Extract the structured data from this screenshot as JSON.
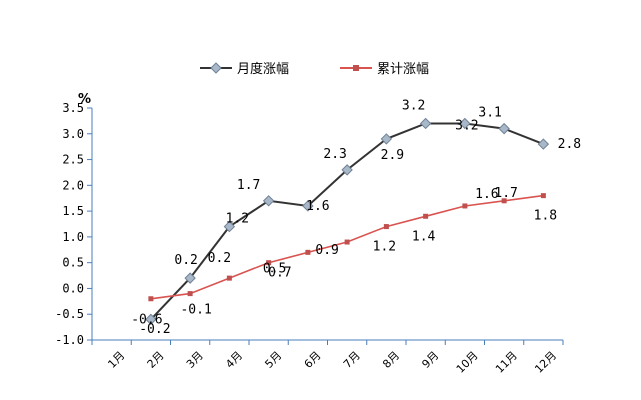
{
  "chart_data": {
    "type": "line",
    "categories": [
      "1月",
      "2月",
      "3月",
      "4月",
      "5月",
      "6月",
      "7月",
      "8月",
      "9月",
      "10月",
      "11月",
      "12月"
    ],
    "ylabel": "%",
    "ylim": [
      -1.0,
      3.5
    ],
    "yticks": [
      "3.5",
      "3.0",
      "2.5",
      "2.0",
      "1.5",
      "1.0",
      "0.5",
      "0.0",
      "-0.5",
      "-1.0"
    ],
    "grid": false,
    "legend": "top-center",
    "series": [
      {
        "name": "月度涨幅",
        "color": "#333333",
        "marker": "diamond",
        "marker_color": "#a9b8c8",
        "values": [
          null,
          -0.6,
          0.2,
          1.2,
          1.7,
          1.6,
          2.3,
          2.9,
          3.2,
          3.2,
          3.1,
          2.8
        ],
        "labels": [
          "",
          "-0.6",
          "0.2",
          "1.2",
          "1.7",
          "1.6",
          "2.3",
          "2.9",
          "3.2",
          "3.2",
          "3.1",
          "2.8"
        ]
      },
      {
        "name": "累计涨幅",
        "color": "#d9534f",
        "marker": "square",
        "marker_color": "#c0504d",
        "values": [
          null,
          -0.2,
          -0.1,
          0.2,
          0.5,
          0.7,
          0.9,
          1.2,
          1.4,
          1.6,
          1.7,
          1.8
        ],
        "labels": [
          "",
          "-0.2",
          "-0.1",
          "0.2",
          "0.5",
          "0.7",
          "0.9",
          "1.2",
          "1.4",
          "1.6",
          "1.7",
          "1.8"
        ]
      }
    ]
  }
}
